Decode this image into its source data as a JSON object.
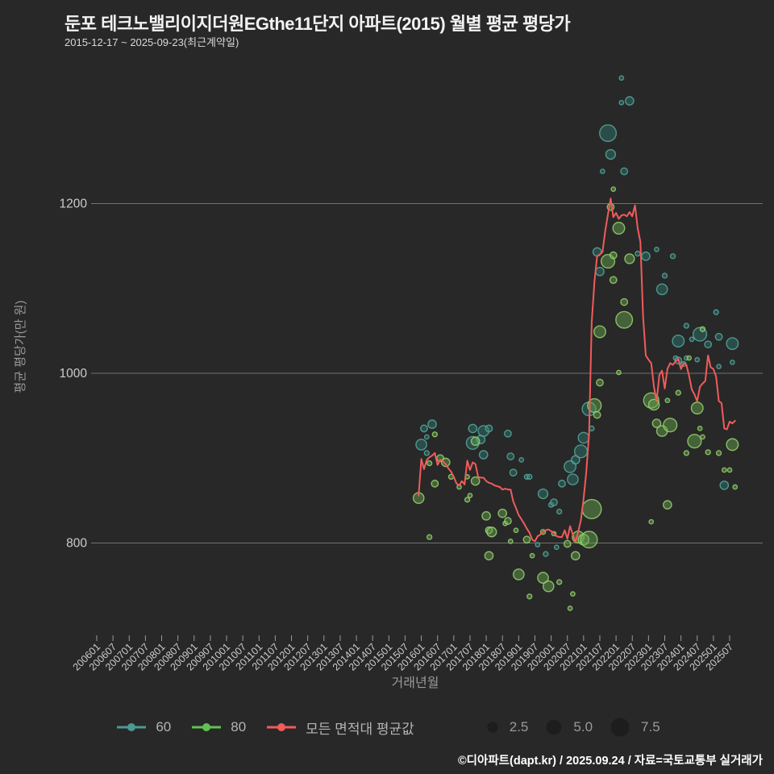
{
  "title": "둔포 테크노밸리이지더원EGthe11단지 아파트(2015) 월별 평균 평당가",
  "subtitle": "2015-12-17 ~ 2025-09-23(최근계약일)",
  "footer": "©디아파트(dapt.kr) / 2025.09.24 / 자료=국토교통부 실거래가",
  "colors": {
    "background": "#282828",
    "grid": "#8a8a8a",
    "tick_text": "#cccccc",
    "axis_title_text": "#9a9a9a",
    "teal_fill": "#2f7a72",
    "teal_stroke": "#55a89c",
    "green_fill": "#6aa84f",
    "green_stroke": "#95d26e",
    "red_line": "#f15b5b",
    "size_circle_fill": "#1d1d1d"
  },
  "chart_data": {
    "type": "scatter",
    "title": "둔포 테크노밸리이지더원EGthe11단지 아파트(2015) 월별 평균 평당가",
    "xlabel": "거래년월",
    "ylabel": "평균 평당가(만 원)",
    "grid": true,
    "legend_position": "bottom",
    "y_ticks": [
      800,
      1000,
      1200
    ],
    "ylim": [
      700,
      1370
    ],
    "x_ticks": [
      "200601",
      "200607",
      "200701",
      "200707",
      "200801",
      "200807",
      "200901",
      "200907",
      "201001",
      "201007",
      "201101",
      "201107",
      "201201",
      "201207",
      "201301",
      "201307",
      "201401",
      "201407",
      "201501",
      "201507",
      "201601",
      "201607",
      "201701",
      "201707",
      "201801",
      "201807",
      "201901",
      "201907",
      "202001",
      "202007",
      "202101",
      "202107",
      "202201",
      "202207",
      "202301",
      "202307",
      "202401",
      "202407",
      "202501",
      "202507"
    ],
    "size_legend": [
      2.5,
      5.0,
      7.5
    ],
    "series": [
      {
        "name": "60",
        "fill": "#2f7a72",
        "stroke": "#55a89c",
        "points": [
          [
            "201601",
            916,
            2.5
          ],
          [
            "201602",
            935,
            1
          ],
          [
            "201603",
            925,
            0.4
          ],
          [
            "201603",
            906,
            0.5
          ],
          [
            "201605",
            940,
            1.5
          ],
          [
            "201708",
            935,
            1.5
          ],
          [
            "201708",
            918,
            3.5
          ],
          [
            "201711",
            922,
            1.5
          ],
          [
            "201712",
            932,
            2.5
          ],
          [
            "201712",
            904,
            1.5
          ],
          [
            "201802",
            935,
            1
          ],
          [
            "201809",
            929,
            1
          ],
          [
            "201810",
            902,
            1
          ],
          [
            "201811",
            883,
            1
          ],
          [
            "201902",
            898,
            0.4
          ],
          [
            "201904",
            878,
            0.5
          ],
          [
            "201905",
            878,
            0.5
          ],
          [
            "201908",
            798,
            0.4
          ],
          [
            "201910",
            858,
            2
          ],
          [
            "201911",
            787,
            0.5
          ],
          [
            "202001",
            845,
            0.5
          ],
          [
            "202002",
            848,
            1
          ],
          [
            "202003",
            795,
            0.4
          ],
          [
            "202004",
            837,
            0.5
          ],
          [
            "202005",
            870,
            1
          ],
          [
            "202008",
            890,
            3
          ],
          [
            "202009",
            875,
            2.5
          ],
          [
            "202010",
            898,
            1.5
          ],
          [
            "202012",
            908,
            3.5
          ],
          [
            "202101",
            924,
            2.5
          ],
          [
            "202103",
            958,
            4
          ],
          [
            "202104",
            935,
            0.5
          ],
          [
            "202106",
            1143,
            1.5
          ],
          [
            "202107",
            1120,
            1.5
          ],
          [
            "202108",
            1238,
            0.4
          ],
          [
            "202110",
            1283,
            6
          ],
          [
            "202111",
            1258,
            2
          ],
          [
            "202203",
            1348,
            0.4
          ],
          [
            "202203",
            1319,
            0.4
          ],
          [
            "202204",
            1238,
            1
          ],
          [
            "202206",
            1321,
            1.5
          ],
          [
            "202209",
            1141,
            0.5
          ],
          [
            "202212",
            1138,
            1.5
          ],
          [
            "202304",
            1146,
            0.4
          ],
          [
            "202306",
            1099,
            2.5
          ],
          [
            "202307",
            1115,
            0.5
          ],
          [
            "202310",
            1138,
            0.5
          ],
          [
            "202311",
            1018,
            0.4
          ],
          [
            "202312",
            1038,
            3
          ],
          [
            "202312",
            1015,
            1
          ],
          [
            "202402",
            1011,
            0.5
          ],
          [
            "202403",
            1056,
            0.5
          ],
          [
            "202403",
            1018,
            0.4
          ],
          [
            "202405",
            1040,
            0.4
          ],
          [
            "202407",
            1016,
            0.4
          ],
          [
            "202408",
            1046,
            4
          ],
          [
            "202411",
            1034,
            1
          ],
          [
            "202502",
            1072,
            0.5
          ],
          [
            "202503",
            1043,
            1
          ],
          [
            "202503",
            1008,
            0.4
          ],
          [
            "202505",
            868,
            1.5
          ],
          [
            "202508",
            1035,
            3
          ],
          [
            "202508",
            1013,
            0.4
          ]
        ]
      },
      {
        "name": "80",
        "fill": "#6aa84f",
        "stroke": "#95d26e",
        "points": [
          [
            "201512",
            853,
            2.5
          ],
          [
            "201604",
            894,
            0.5
          ],
          [
            "201604",
            807,
            0.5
          ],
          [
            "201606",
            928,
            0.5
          ],
          [
            "201606",
            870,
            1
          ],
          [
            "201608",
            900,
            1
          ],
          [
            "201610",
            895,
            1.5
          ],
          [
            "201612",
            878,
            0.5
          ],
          [
            "201703",
            866,
            0.4
          ],
          [
            "201706",
            878,
            0.4
          ],
          [
            "201706",
            851,
            0.5
          ],
          [
            "201707",
            856,
            0.4
          ],
          [
            "201709",
            920,
            1.5
          ],
          [
            "201709",
            873,
            1.5
          ],
          [
            "201801",
            832,
            1.5
          ],
          [
            "201802",
            815,
            1
          ],
          [
            "201802",
            785,
            1.5
          ],
          [
            "201803",
            813,
            2
          ],
          [
            "201807",
            835,
            1.5
          ],
          [
            "201808",
            823,
            0.4
          ],
          [
            "201809",
            826,
            1
          ],
          [
            "201810",
            802,
            0.4
          ],
          [
            "201812",
            815,
            0.4
          ],
          [
            "201901",
            763,
            2.5
          ],
          [
            "201904",
            804,
            1
          ],
          [
            "201905",
            737,
            0.5
          ],
          [
            "201906",
            785,
            0.4
          ],
          [
            "201910",
            759,
            2.5
          ],
          [
            "201910",
            813,
            0.5
          ],
          [
            "201912",
            749,
            2.5
          ],
          [
            "202002",
            811,
            0.4
          ],
          [
            "202004",
            754,
            0.5
          ],
          [
            "202007",
            799,
            1
          ],
          [
            "202008",
            723,
            0.4
          ],
          [
            "202009",
            740,
            0.4
          ],
          [
            "202010",
            785,
            1.5
          ],
          [
            "202011",
            807,
            3
          ],
          [
            "202101",
            804,
            2.5
          ],
          [
            "202103",
            804,
            6
          ],
          [
            "202104",
            840,
            8
          ],
          [
            "202105",
            962,
            4
          ],
          [
            "202106",
            951,
            1
          ],
          [
            "202107",
            1049,
            3
          ],
          [
            "202107",
            989,
            1
          ],
          [
            "202110",
            1132,
            4
          ],
          [
            "202111",
            1196,
            1
          ],
          [
            "202112",
            1217,
            0.4
          ],
          [
            "202112",
            1139,
            1
          ],
          [
            "202112",
            1110,
            1
          ],
          [
            "202202",
            1171,
            3
          ],
          [
            "202202",
            1001,
            0.4
          ],
          [
            "202204",
            1084,
            1
          ],
          [
            "202204",
            1063,
            6
          ],
          [
            "202206",
            1135,
            2
          ],
          [
            "202302",
            968,
            5
          ],
          [
            "202302",
            825,
            0.4
          ],
          [
            "202303",
            963,
            2.5
          ],
          [
            "202304",
            941,
            1.5
          ],
          [
            "202306",
            932,
            2.5
          ],
          [
            "202308",
            968,
            0.4
          ],
          [
            "202308",
            845,
            1.5
          ],
          [
            "202309",
            939,
            4
          ],
          [
            "202312",
            977,
            0.5
          ],
          [
            "202403",
            906,
            0.5
          ],
          [
            "202404",
            1018,
            0.4
          ],
          [
            "202406",
            920,
            4
          ],
          [
            "202407",
            959,
            3
          ],
          [
            "202408",
            935,
            0.4
          ],
          [
            "202409",
            1052,
            0.5
          ],
          [
            "202409",
            925,
            0.4
          ],
          [
            "202411",
            907,
            0.5
          ],
          [
            "202503",
            906,
            0.5
          ],
          [
            "202505",
            886,
            0.4
          ],
          [
            "202507",
            886,
            0.4
          ],
          [
            "202508",
            916,
            3
          ],
          [
            "202509",
            866,
            0.4
          ]
        ]
      }
    ],
    "line": {
      "name": "모든 면적대 평균값",
      "color": "#f15b5b",
      "points": [
        [
          "201512",
          856
        ],
        [
          "201601",
          899
        ],
        [
          "201602",
          887
        ],
        [
          "201603",
          898
        ],
        [
          "201604",
          901
        ],
        [
          "201605",
          903
        ],
        [
          "201606",
          906
        ],
        [
          "201607",
          892
        ],
        [
          "201608",
          898
        ],
        [
          "201609",
          896
        ],
        [
          "201610",
          893
        ],
        [
          "201611",
          888
        ],
        [
          "201612",
          884
        ],
        [
          "201701",
          878
        ],
        [
          "201702",
          870
        ],
        [
          "201703",
          868
        ],
        [
          "201704",
          873
        ],
        [
          "201705",
          869
        ],
        [
          "201706",
          897
        ],
        [
          "201707",
          886
        ],
        [
          "201708",
          895
        ],
        [
          "201709",
          893
        ],
        [
          "201710",
          878
        ],
        [
          "201711",
          877
        ],
        [
          "201712",
          877
        ],
        [
          "201801",
          873
        ],
        [
          "201802",
          871
        ],
        [
          "201803",
          870
        ],
        [
          "201804",
          868
        ],
        [
          "201805",
          867
        ],
        [
          "201806",
          866
        ],
        [
          "201807",
          863
        ],
        [
          "201808",
          864
        ],
        [
          "201809",
          863
        ],
        [
          "201810",
          863
        ],
        [
          "201811",
          849
        ],
        [
          "201812",
          841
        ],
        [
          "201901",
          833
        ],
        [
          "201902",
          828
        ],
        [
          "201903",
          823
        ],
        [
          "201904",
          817
        ],
        [
          "201905",
          812
        ],
        [
          "201906",
          804
        ],
        [
          "201907",
          802
        ],
        [
          "201908",
          808
        ],
        [
          "201909",
          810
        ],
        [
          "201910",
          813
        ],
        [
          "201911",
          815
        ],
        [
          "201912",
          816
        ],
        [
          "202001",
          814
        ],
        [
          "202002",
          812
        ],
        [
          "202003",
          808
        ],
        [
          "202004",
          807
        ],
        [
          "202005",
          807
        ],
        [
          "202006",
          815
        ],
        [
          "202007",
          805
        ],
        [
          "202008",
          820
        ],
        [
          "202009",
          810
        ],
        [
          "202010",
          801
        ],
        [
          "202011",
          813
        ],
        [
          "202012",
          827
        ],
        [
          "202101",
          852
        ],
        [
          "202102",
          884
        ],
        [
          "202103",
          928
        ],
        [
          "202104",
          1060
        ],
        [
          "202105",
          1108
        ],
        [
          "202106",
          1138
        ],
        [
          "202107",
          1140
        ],
        [
          "202108",
          1143
        ],
        [
          "202109",
          1168
        ],
        [
          "202110",
          1187
        ],
        [
          "202111",
          1206
        ],
        [
          "202112",
          1184
        ],
        [
          "202201",
          1189
        ],
        [
          "202202",
          1182
        ],
        [
          "202203",
          1186
        ],
        [
          "202204",
          1187
        ],
        [
          "202205",
          1185
        ],
        [
          "202206",
          1190
        ],
        [
          "202207",
          1185
        ],
        [
          "202208",
          1198
        ],
        [
          "202209",
          1171
        ],
        [
          "202210",
          1155
        ],
        [
          "202211",
          1067
        ],
        [
          "202212",
          1021
        ],
        [
          "202301",
          1016
        ],
        [
          "202302",
          1012
        ],
        [
          "202303",
          984
        ],
        [
          "202304",
          967
        ],
        [
          "202305",
          998
        ],
        [
          "202306",
          1003
        ],
        [
          "202307",
          982
        ],
        [
          "202308",
          1005
        ],
        [
          "202309",
          1012
        ],
        [
          "202310",
          1010
        ],
        [
          "202311",
          1014
        ],
        [
          "202312",
          1017
        ],
        [
          "202401",
          1005
        ],
        [
          "202402",
          1012
        ],
        [
          "202403",
          1010
        ],
        [
          "202404",
          997
        ],
        [
          "202405",
          981
        ],
        [
          "202406",
          975
        ],
        [
          "202407",
          967
        ],
        [
          "202408",
          984
        ],
        [
          "202409",
          988
        ],
        [
          "202410",
          991
        ],
        [
          "202411",
          1021
        ],
        [
          "202412",
          1007
        ],
        [
          "202501",
          1005
        ],
        [
          "202502",
          996
        ],
        [
          "202503",
          967
        ],
        [
          "202504",
          965
        ],
        [
          "202505",
          935
        ],
        [
          "202506",
          934
        ],
        [
          "202507",
          943
        ],
        [
          "202508",
          941
        ],
        [
          "202509",
          944
        ]
      ]
    }
  }
}
